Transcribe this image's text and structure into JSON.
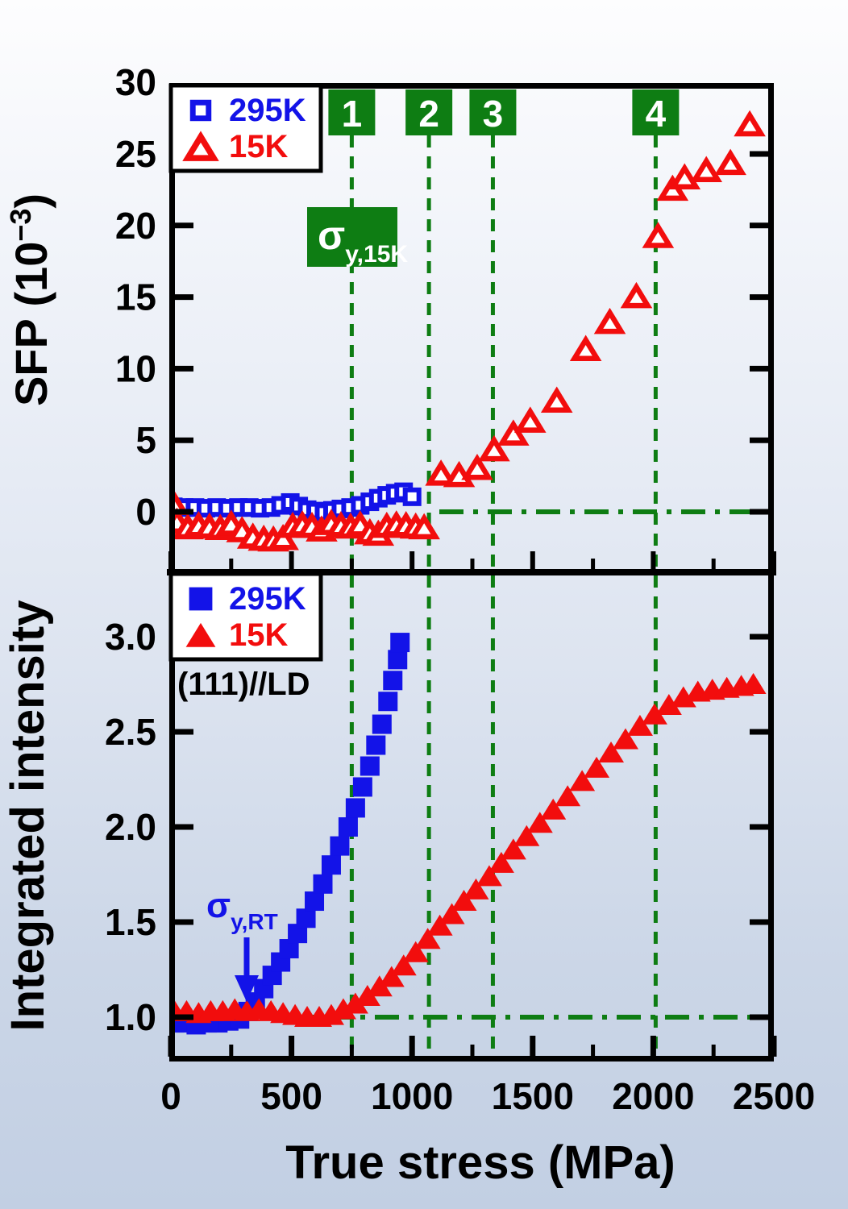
{
  "figure": {
    "frame_color": "#000000",
    "accent_green": "#0e7d13",
    "accent_blue": "#1313e8",
    "accent_red": "#f20d0d",
    "bg_top": "#fdfdfe",
    "bg_bottom": "#c2cfe3"
  },
  "x_axis": {
    "label": "True stress (MPa)",
    "min": 0,
    "max": 2500,
    "major_ticks": [
      0,
      500,
      1000,
      1500,
      2000,
      2500
    ],
    "minor_ticks": [
      250,
      750,
      1250,
      1750,
      2250
    ]
  },
  "guides": {
    "color": "#0e7d13",
    "vlines": [
      {
        "label": "1",
        "x": 750
      },
      {
        "label": "2",
        "x": 1070
      },
      {
        "label": "3",
        "x": 1335
      },
      {
        "label": "4",
        "x": 2010
      }
    ],
    "sigma_15k": {
      "symbol": "σ",
      "subscript": "y,15K",
      "x": 750,
      "text_color": "#ffffff",
      "box_color": "#0e7d13"
    },
    "sigma_rt": {
      "symbol": "σ",
      "subscript": "y,RT",
      "x": 315,
      "color": "#1313e8"
    }
  },
  "chart_data": [
    {
      "id": "top-panel",
      "type": "scatter",
      "ylabel": {
        "prefix": "SFP (10",
        "sup": "−3",
        "suffix": ")"
      },
      "xlabel": "True stress (MPa)",
      "xlim": [
        0,
        2500
      ],
      "ylim": [
        -4.2,
        30
      ],
      "y_ticks": [
        "0",
        "5",
        "10",
        "15",
        "20",
        "25",
        "30"
      ],
      "y_tick_values": [
        0,
        5,
        10,
        15,
        20,
        25,
        30
      ],
      "baseline_y": 0,
      "baseline_style": "dash-dot",
      "legend_position": "top-left",
      "legend": [
        {
          "label": "295K",
          "marker": "open-square",
          "color": "#1313e8"
        },
        {
          "label": "15K",
          "marker": "open-triangle",
          "color": "#f20d0d"
        }
      ],
      "series": [
        {
          "name": "295K",
          "marker": "open-square",
          "color": "#1313e8",
          "points": [
            [
              10,
              0.35
            ],
            [
              55,
              0.3
            ],
            [
              100,
              0.3
            ],
            [
              145,
              0.25
            ],
            [
              190,
              0.3
            ],
            [
              235,
              0.25
            ],
            [
              280,
              0.3
            ],
            [
              325,
              0.3
            ],
            [
              370,
              0.25
            ],
            [
              415,
              0.3
            ],
            [
              455,
              0.45
            ],
            [
              495,
              0.65
            ],
            [
              530,
              0.4
            ],
            [
              565,
              0.15
            ],
            [
              600,
              0.05
            ],
            [
              635,
              -0.05
            ],
            [
              670,
              0.1
            ],
            [
              705,
              0.2
            ],
            [
              745,
              0.3
            ],
            [
              785,
              0.45
            ],
            [
              825,
              0.7
            ],
            [
              860,
              0.95
            ],
            [
              895,
              1.15
            ],
            [
              930,
              1.3
            ],
            [
              965,
              1.4
            ],
            [
              1000,
              1.05
            ]
          ]
        },
        {
          "name": "15K",
          "marker": "open-triangle",
          "color": "#f20d0d",
          "points": [
            [
              10,
              0.55
            ],
            [
              25,
              -0.75
            ],
            [
              70,
              -1.15
            ],
            [
              115,
              -1.0
            ],
            [
              160,
              -1.1
            ],
            [
              205,
              -1.2
            ],
            [
              250,
              -0.9
            ],
            [
              295,
              -1.35
            ],
            [
              340,
              -1.8
            ],
            [
              385,
              -1.95
            ],
            [
              425,
              -2.0
            ],
            [
              465,
              -1.9
            ],
            [
              505,
              -1.05
            ],
            [
              545,
              -0.95
            ],
            [
              585,
              -1.05
            ],
            [
              625,
              -1.3
            ],
            [
              665,
              -0.85
            ],
            [
              705,
              -1.0
            ],
            [
              745,
              -1.1
            ],
            [
              785,
              -0.95
            ],
            [
              825,
              -1.5
            ],
            [
              860,
              -1.6
            ],
            [
              895,
              -1.05
            ],
            [
              935,
              -0.95
            ],
            [
              975,
              -1.0
            ],
            [
              1015,
              -1.1
            ],
            [
              1050,
              -1.15
            ],
            [
              1120,
              2.6
            ],
            [
              1195,
              2.5
            ],
            [
              1270,
              3.0
            ],
            [
              1340,
              4.3
            ],
            [
              1420,
              5.4
            ],
            [
              1490,
              6.3
            ],
            [
              1600,
              7.7
            ],
            [
              1720,
              11.3
            ],
            [
              1820,
              13.2
            ],
            [
              1930,
              15.0
            ],
            [
              2020,
              19.2
            ],
            [
              2080,
              22.5
            ],
            [
              2130,
              23.3
            ],
            [
              2220,
              23.8
            ],
            [
              2320,
              24.3
            ],
            [
              2400,
              27.0
            ]
          ]
        }
      ]
    },
    {
      "id": "bottom-panel",
      "type": "scatter",
      "ylabel": "Integrated intensity",
      "xlabel": "True stress (MPa)",
      "xlim": [
        0,
        2500
      ],
      "ylim": [
        0.77,
        3.34
      ],
      "y_ticks": [
        "1.0",
        "1.5",
        "2.0",
        "2.5",
        "3.0"
      ],
      "y_tick_values": [
        1.0,
        1.5,
        2.0,
        2.5,
        3.0
      ],
      "baseline_y": 1.0,
      "baseline_style": "dash-dot",
      "annotation": "(111)//LD",
      "legend_position": "top-left",
      "legend": [
        {
          "label": "295K",
          "marker": "square",
          "color": "#1313e8"
        },
        {
          "label": "15K",
          "marker": "triangle",
          "color": "#f20d0d"
        }
      ],
      "series": [
        {
          "name": "295K",
          "marker": "square",
          "color": "#1313e8",
          "points": [
            [
              15,
              0.97
            ],
            [
              60,
              0.97
            ],
            [
              105,
              0.96
            ],
            [
              150,
              0.97
            ],
            [
              195,
              0.97
            ],
            [
              240,
              0.98
            ],
            [
              285,
              0.99
            ],
            [
              320,
              1.03
            ],
            [
              350,
              1.08
            ],
            [
              385,
              1.15
            ],
            [
              420,
              1.22
            ],
            [
              455,
              1.29
            ],
            [
              490,
              1.36
            ],
            [
              525,
              1.44
            ],
            [
              560,
              1.52
            ],
            [
              595,
              1.61
            ],
            [
              630,
              1.7
            ],
            [
              665,
              1.8
            ],
            [
              700,
              1.9
            ],
            [
              735,
              2.0
            ],
            [
              765,
              2.1
            ],
            [
              795,
              2.21
            ],
            [
              825,
              2.32
            ],
            [
              850,
              2.43
            ],
            [
              875,
              2.54
            ],
            [
              900,
              2.66
            ],
            [
              920,
              2.77
            ],
            [
              940,
              2.88
            ],
            [
              950,
              2.97
            ]
          ]
        },
        {
          "name": "15K",
          "marker": "triangle",
          "color": "#f20d0d",
          "points": [
            [
              15,
              1.03
            ],
            [
              65,
              1.03
            ],
            [
              115,
              1.02
            ],
            [
              165,
              1.03
            ],
            [
              215,
              1.03
            ],
            [
              265,
              1.04
            ],
            [
              315,
              1.03
            ],
            [
              365,
              1.04
            ],
            [
              415,
              1.03
            ],
            [
              465,
              1.02
            ],
            [
              515,
              1.01
            ],
            [
              565,
              1.0
            ],
            [
              615,
              1.0
            ],
            [
              665,
              1.01
            ],
            [
              715,
              1.04
            ],
            [
              765,
              1.07
            ],
            [
              815,
              1.11
            ],
            [
              865,
              1.16
            ],
            [
              915,
              1.21
            ],
            [
              965,
              1.27
            ],
            [
              1015,
              1.34
            ],
            [
              1065,
              1.41
            ],
            [
              1115,
              1.48
            ],
            [
              1165,
              1.54
            ],
            [
              1215,
              1.61
            ],
            [
              1265,
              1.67
            ],
            [
              1320,
              1.74
            ],
            [
              1370,
              1.81
            ],
            [
              1420,
              1.88
            ],
            [
              1475,
              1.95
            ],
            [
              1530,
              2.02
            ],
            [
              1585,
              2.09
            ],
            [
              1645,
              2.16
            ],
            [
              1705,
              2.24
            ],
            [
              1765,
              2.31
            ],
            [
              1825,
              2.39
            ],
            [
              1885,
              2.46
            ],
            [
              1945,
              2.53
            ],
            [
              2005,
              2.59
            ],
            [
              2065,
              2.64
            ],
            [
              2125,
              2.68
            ],
            [
              2185,
              2.71
            ],
            [
              2245,
              2.72
            ],
            [
              2305,
              2.73
            ],
            [
              2365,
              2.74
            ],
            [
              2415,
              2.75
            ]
          ]
        }
      ]
    }
  ]
}
